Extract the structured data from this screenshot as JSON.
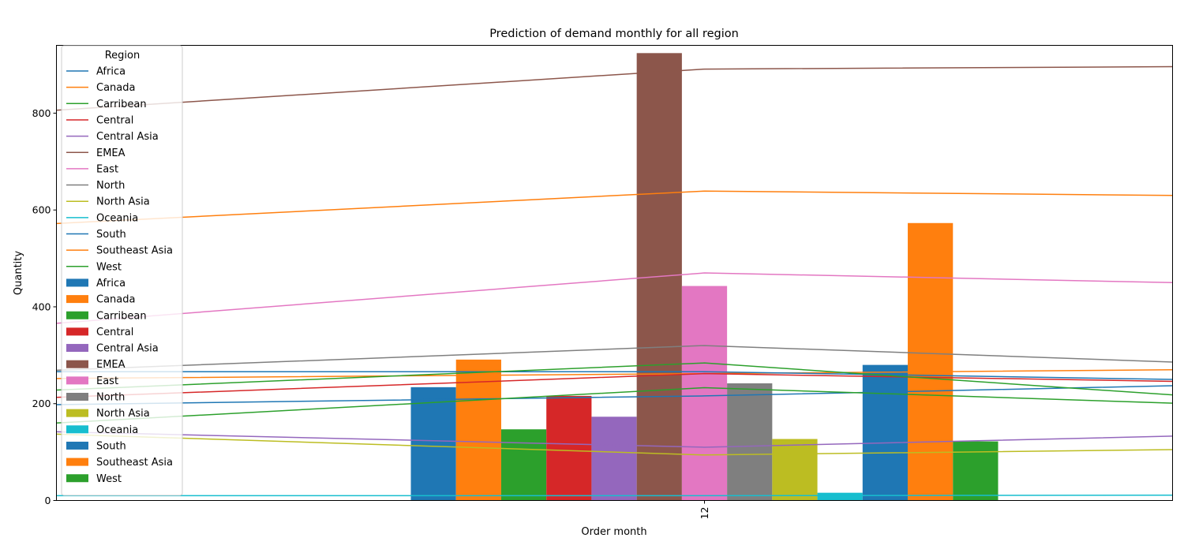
{
  "chart_data": {
    "type": "bar",
    "title": "Prediction of demand monthly for all region",
    "xlabel": "Order month",
    "ylabel": "Quantity",
    "categories": [
      "12"
    ],
    "ylim": [
      0,
      940
    ],
    "yticks": [
      0,
      200,
      400,
      600,
      800
    ],
    "legend": {
      "title": "Region",
      "placement": "top-left"
    },
    "bar_series": [
      {
        "name": "Africa",
        "color": "#1f77b4",
        "values": [
          234
        ]
      },
      {
        "name": "Canada",
        "color": "#ff7f0e",
        "values": [
          291
        ]
      },
      {
        "name": "Carribean",
        "color": "#2ca02c",
        "values": [
          147
        ]
      },
      {
        "name": "Central",
        "color": "#d62728",
        "values": [
          216
        ]
      },
      {
        "name": "Central Asia",
        "color": "#9467bd",
        "values": [
          173
        ]
      },
      {
        "name": "EMEA",
        "color": "#8c564b",
        "values": [
          924
        ]
      },
      {
        "name": "East",
        "color": "#e377c2",
        "values": [
          443
        ]
      },
      {
        "name": "North",
        "color": "#7f7f7f",
        "values": [
          242
        ]
      },
      {
        "name": "North Asia",
        "color": "#bcbd22",
        "values": [
          127
        ]
      },
      {
        "name": "Oceania",
        "color": "#17becf",
        "values": [
          16
        ]
      },
      {
        "name": "South",
        "color": "#1f77b4",
        "values": [
          280
        ]
      },
      {
        "name": "Southeast Asia",
        "color": "#ff7f0e",
        "values": [
          573
        ]
      },
      {
        "name": "West",
        "color": "#2ca02c",
        "values": [
          122
        ]
      }
    ],
    "line_series": [
      {
        "name": "Africa",
        "color": "#1f77b4",
        "points": [
          198,
          216,
          237
        ]
      },
      {
        "name": "Canada",
        "color": "#ff7f0e",
        "points": [
          252,
          262,
          270
        ]
      },
      {
        "name": "Carribean",
        "color": "#2ca02c",
        "points": [
          160,
          233,
          201
        ]
      },
      {
        "name": "Central",
        "color": "#d62728",
        "points": [
          213,
          262,
          246
        ]
      },
      {
        "name": "Central Asia",
        "color": "#9467bd",
        "points": [
          142,
          110,
          133
        ]
      },
      {
        "name": "EMEA",
        "color": "#8c564b",
        "points": [
          806,
          891,
          896
        ]
      },
      {
        "name": "East",
        "color": "#e377c2",
        "points": [
          366,
          470,
          450
        ]
      },
      {
        "name": "North",
        "color": "#7f7f7f",
        "points": [
          269,
          320,
          286
        ]
      },
      {
        "name": "North Asia",
        "color": "#bcbd22",
        "points": [
          137,
          94,
          105
        ]
      },
      {
        "name": "Oceania",
        "color": "#17becf",
        "points": [
          10,
          10,
          11
        ]
      },
      {
        "name": "South",
        "color": "#1f77b4",
        "points": [
          266,
          266,
          250
        ]
      },
      {
        "name": "Southeast Asia",
        "color": "#ff7f0e",
        "points": [
          572,
          639,
          630
        ]
      },
      {
        "name": "West",
        "color": "#2ca02c",
        "points": [
          228,
          284,
          218
        ]
      }
    ]
  }
}
